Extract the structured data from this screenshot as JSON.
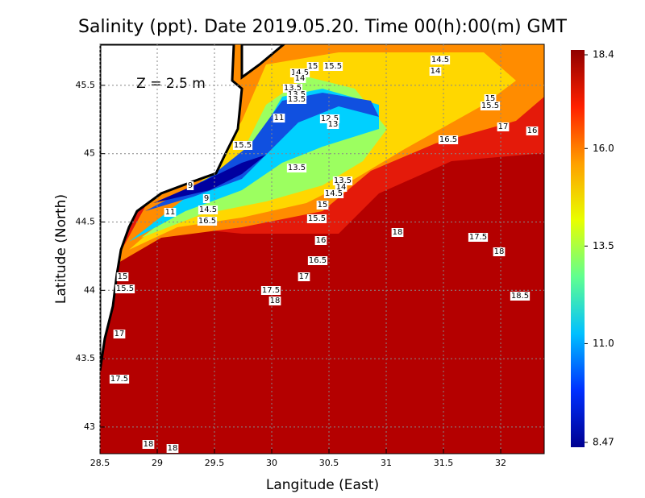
{
  "title": "Salinity (ppt). Date 2019.05.20. Time 00(h):00(m) GMT",
  "depth_label": "Z = 2.5 m",
  "x_axis": {
    "label": "Langitude (East)",
    "lim": [
      28.5,
      32.38
    ],
    "ticks": [
      28.5,
      29,
      29.5,
      30,
      30.5,
      31,
      31.5,
      32
    ]
  },
  "y_axis": {
    "label": "Latitude (North)",
    "lim": [
      42.805,
      45.8
    ],
    "ticks": [
      43,
      43.5,
      44,
      44.5,
      45,
      45.5
    ]
  },
  "grid": true,
  "colorbar": {
    "range": [
      8.47,
      18.4
    ],
    "ticks": [
      18.4,
      {
        "value": 16,
        "label": "16.0"
      },
      13.5,
      {
        "value": 11,
        "label": "11.0"
      },
      8.47
    ],
    "colors": [
      "#000090",
      "#0030ff",
      "#00c0ff",
      "#60ff90",
      "#e8ff00",
      "#ffa000",
      "#ff2000",
      "#900000"
    ]
  },
  "contour_labels": [
    "15",
    "15.5",
    "14.5",
    "14",
    "14.5",
    "14",
    "13.5",
    "13.5",
    "13.5",
    "11",
    "12.5",
    "13",
    "15",
    "15.5",
    "17",
    "16",
    "16.5",
    "15.5",
    "13.5",
    "13.5",
    "14",
    "14.5",
    "9",
    "9",
    "11",
    "14.5",
    "15",
    "15.5",
    "16.5",
    "18",
    "16",
    "17.5",
    "18",
    "16.5",
    "17",
    "15",
    "15.5",
    "17.5",
    "18",
    "18.5",
    "17",
    "17.5",
    "18",
    "18"
  ]
}
